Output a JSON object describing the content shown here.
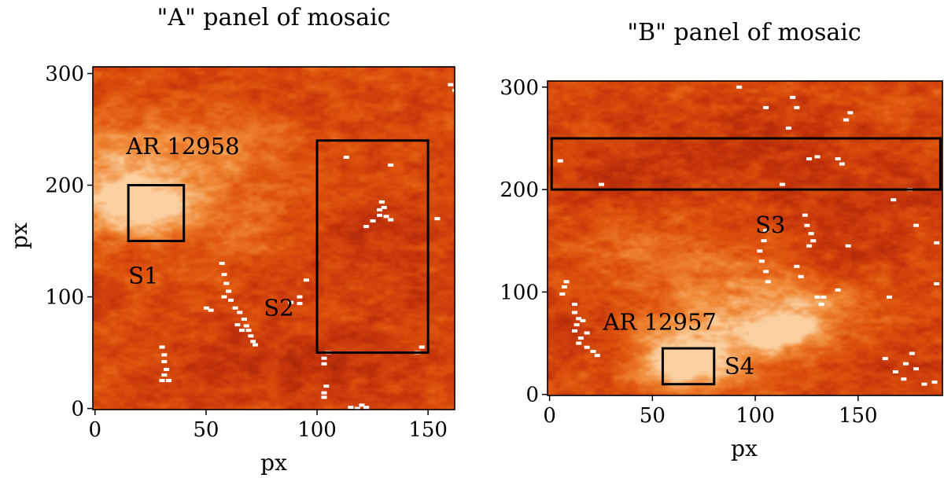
{
  "chart_data": [
    {
      "type": "heatmap",
      "title": "\"A\" panel of mosaic",
      "xlabel": "px",
      "ylabel": "px",
      "xlim": [
        -1,
        162
      ],
      "ylim": [
        -1,
        306
      ],
      "xticks": [
        0,
        50,
        100,
        150
      ],
      "yticks": [
        0,
        100,
        200,
        300
      ],
      "colormap": [
        "#8a1f0a",
        "#c0300a",
        "#e0560e",
        "#f08a38",
        "#fbd0a0"
      ],
      "regions": [
        {
          "label": "S1",
          "x0": 15,
          "x1": 40,
          "y0": 150,
          "y1": 200,
          "label_x": 15,
          "label_y": 112
        },
        {
          "label": "S2",
          "x0": 100,
          "x1": 150,
          "y0": 50,
          "y1": 240,
          "label_x": 76,
          "label_y": 83
        }
      ],
      "annotations": [
        {
          "text": "AR 12958",
          "x": 14,
          "y": 228
        }
      ],
      "bright_spots": [
        {
          "x": 22,
          "y": 178,
          "r": 26,
          "strength": 1.0
        },
        {
          "x": 10,
          "y": 215,
          "r": 45,
          "strength": 0.7
        },
        {
          "x": 60,
          "y": 230,
          "r": 30,
          "strength": 0.35
        },
        {
          "x": 70,
          "y": 160,
          "r": 25,
          "strength": 0.3
        }
      ],
      "dark_lanes": [
        {
          "x": 125,
          "y": 150,
          "r": 30
        },
        {
          "x": 110,
          "y": 40,
          "r": 28
        },
        {
          "x": 70,
          "y": 40,
          "r": 30
        },
        {
          "x": 150,
          "y": 100,
          "r": 20
        }
      ],
      "saturated_pixels": [
        [
          57,
          130
        ],
        [
          58,
          120
        ],
        [
          59,
          112
        ],
        [
          60,
          105
        ],
        [
          61,
          97
        ],
        [
          63,
          90
        ],
        [
          65,
          86
        ],
        [
          67,
          80
        ],
        [
          68,
          74
        ],
        [
          69,
          70
        ],
        [
          70,
          65
        ],
        [
          71,
          60
        ],
        [
          72,
          57
        ],
        [
          66,
          70
        ],
        [
          64,
          75
        ],
        [
          58,
          100
        ],
        [
          50,
          90
        ],
        [
          52,
          88
        ],
        [
          30,
          55
        ],
        [
          31,
          48
        ],
        [
          31,
          42
        ],
        [
          32,
          35
        ],
        [
          31,
          30
        ],
        [
          30,
          25
        ],
        [
          33,
          25
        ],
        [
          92,
          100
        ],
        [
          92,
          94
        ],
        [
          95,
          115
        ],
        [
          88,
          95
        ],
        [
          105,
          50
        ],
        [
          103,
          45
        ],
        [
          103,
          40
        ],
        [
          104,
          20
        ],
        [
          103,
          14
        ],
        [
          103,
          10
        ],
        [
          120,
          3
        ],
        [
          118,
          0
        ],
        [
          122,
          1
        ],
        [
          115,
          1
        ],
        [
          129,
          185
        ],
        [
          130,
          180
        ],
        [
          131,
          172
        ],
        [
          133,
          169
        ],
        [
          128,
          173
        ],
        [
          125,
          168
        ],
        [
          128,
          178
        ],
        [
          113,
          225
        ],
        [
          133,
          218
        ],
        [
          122,
          163
        ],
        [
          145,
          50
        ],
        [
          147,
          55
        ],
        [
          154,
          170
        ],
        [
          160,
          290
        ],
        [
          162,
          285
        ]
      ]
    },
    {
      "type": "heatmap",
      "title": "\"B\" panel of mosaic",
      "xlabel": "px",
      "ylabel": "",
      "xlim": [
        -1,
        191
      ],
      "ylim": [
        -1,
        306
      ],
      "xticks": [
        0,
        50,
        100,
        150
      ],
      "yticks": [
        0,
        100,
        200,
        300
      ],
      "colormap": [
        "#8a1f0a",
        "#c0300a",
        "#e0560e",
        "#f08a38",
        "#fbd0a0"
      ],
      "regions": [
        {
          "label": "S3",
          "x0": 1,
          "x1": 190,
          "y0": 200,
          "y1": 250,
          "label_x": 100,
          "label_y": 158
        },
        {
          "label": "S4",
          "x0": 55,
          "x1": 80,
          "y0": 10,
          "y1": 45,
          "label_x": 85,
          "label_y": 20
        }
      ],
      "annotations": [
        {
          "text": "AR 12957",
          "x": 26,
          "y": 63
        }
      ],
      "bright_spots": [
        {
          "x": 67,
          "y": 28,
          "r": 24,
          "strength": 1.0
        },
        {
          "x": 75,
          "y": 55,
          "r": 40,
          "strength": 0.55
        },
        {
          "x": 112,
          "y": 60,
          "r": 20,
          "strength": 0.75
        },
        {
          "x": 125,
          "y": 80,
          "r": 35,
          "strength": 0.5
        },
        {
          "x": 90,
          "y": 110,
          "r": 40,
          "strength": 0.35
        },
        {
          "x": 40,
          "y": 150,
          "r": 35,
          "strength": 0.3
        }
      ],
      "dark_lanes": [
        {
          "x": 30,
          "y": 200,
          "r": 40
        },
        {
          "x": 100,
          "y": 245,
          "r": 45
        },
        {
          "x": 160,
          "y": 190,
          "r": 40
        },
        {
          "x": 10,
          "y": 60,
          "r": 25
        },
        {
          "x": 170,
          "y": 30,
          "r": 30
        },
        {
          "x": 140,
          "y": 130,
          "r": 25
        }
      ],
      "saturated_pixels": [
        [
          8,
          110
        ],
        [
          7,
          105
        ],
        [
          6,
          98
        ],
        [
          12,
          88
        ],
        [
          12,
          80
        ],
        [
          14,
          74
        ],
        [
          13,
          68
        ],
        [
          12,
          62
        ],
        [
          15,
          55
        ],
        [
          14,
          50
        ],
        [
          18,
          46
        ],
        [
          21,
          42
        ],
        [
          23,
          38
        ],
        [
          18,
          60
        ],
        [
          16,
          72
        ],
        [
          5,
          228
        ],
        [
          25,
          205
        ],
        [
          92,
          300
        ],
        [
          118,
          290
        ],
        [
          120,
          280
        ],
        [
          126,
          230
        ],
        [
          130,
          232
        ],
        [
          140,
          230
        ],
        [
          142,
          225
        ],
        [
          146,
          275
        ],
        [
          144,
          268
        ],
        [
          113,
          205
        ],
        [
          105,
          280
        ],
        [
          127,
          157
        ],
        [
          128,
          150
        ],
        [
          126,
          145
        ],
        [
          124,
          175
        ],
        [
          125,
          165
        ],
        [
          105,
          160
        ],
        [
          104,
          150
        ],
        [
          102,
          140
        ],
        [
          103,
          130
        ],
        [
          105,
          120
        ],
        [
          106,
          110
        ],
        [
          120,
          125
        ],
        [
          122,
          115
        ],
        [
          130,
          95
        ],
        [
          132,
          88
        ],
        [
          133,
          95
        ],
        [
          140,
          102
        ],
        [
          165,
          95
        ],
        [
          167,
          190
        ],
        [
          175,
          200
        ],
        [
          178,
          165
        ],
        [
          163,
          35
        ],
        [
          168,
          22
        ],
        [
          173,
          30
        ],
        [
          178,
          25
        ],
        [
          182,
          10
        ],
        [
          187,
          12
        ],
        [
          172,
          15
        ],
        [
          176,
          40
        ],
        [
          188,
          108
        ],
        [
          188,
          148
        ],
        [
          145,
          145
        ],
        [
          116,
          260
        ]
      ]
    }
  ]
}
